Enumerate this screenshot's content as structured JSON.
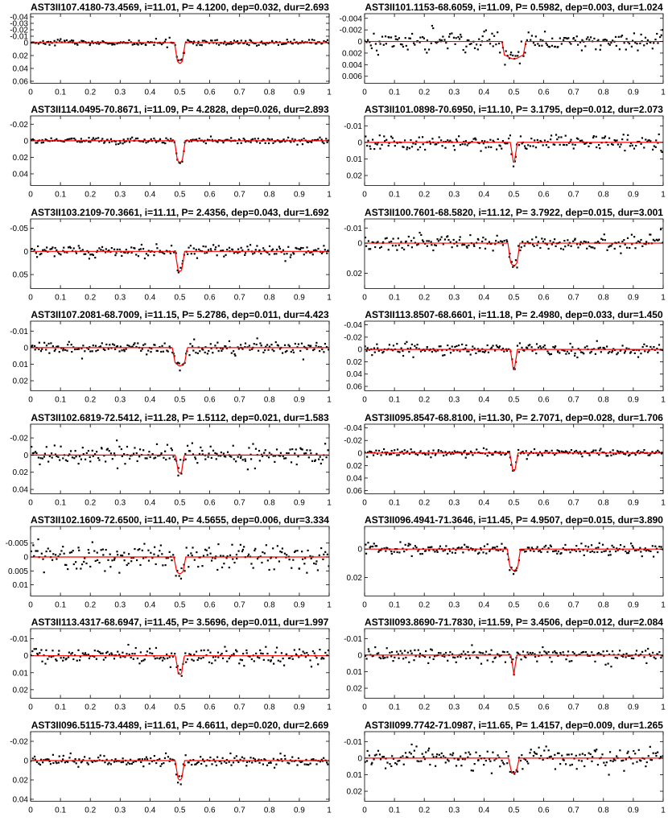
{
  "figure": {
    "colors": {
      "model": "#ff0000",
      "points": "#000000",
      "axes": "#000000"
    }
  },
  "chart_data": [
    {
      "type": "scatter",
      "title": "AST3II107.4180-73.4569, i=11.01, P= 4.1200, dep=0.032, dur=2.693",
      "dep": 0.032,
      "halfwidth": 0.018,
      "noise": 0.0022,
      "ylim": [
        -0.045,
        0.063
      ],
      "yticks": [
        -0.04,
        -0.03,
        -0.02,
        -0.01,
        0,
        0.02,
        0.04,
        0.06
      ],
      "yticklabels": [
        "-0.04",
        "-0.03",
        "-0.02",
        "-0.01",
        "0",
        "0.02",
        "0.04",
        "0.06"
      ],
      "xticks": [
        0,
        0.1,
        0.2,
        0.3,
        0.4,
        0.5,
        0.6,
        0.7,
        0.8,
        0.9,
        1
      ],
      "xticklabels": [
        "0",
        "0.1",
        "0.2",
        "0.3",
        "0.4",
        "0.5",
        "0.6",
        "0.7",
        "0.8",
        "0.9",
        "1"
      ]
    },
    {
      "type": "scatter",
      "title": "AST3II101.1153-68.6059, i=11.09, P= 0.5982, dep=0.003, dur=1.024",
      "dep": 0.003,
      "halfwidth": 0.04,
      "noise": 0.0009,
      "ylim": [
        -0.0048,
        0.0072
      ],
      "yticks": [
        -0.004,
        -0.002,
        0,
        0.002,
        0.004,
        0.006
      ],
      "yticklabels": [
        "-0.004",
        "-0.002",
        "0",
        "0.002",
        "0.004",
        "0.006"
      ],
      "xticks": [
        0,
        0.1,
        0.2,
        0.3,
        0.4,
        0.5,
        0.6,
        0.7,
        0.8,
        0.9,
        1
      ],
      "xticklabels": [
        "0",
        "0.1",
        "0.2",
        "0.3",
        "0.4",
        "0.5",
        "0.6",
        "0.7",
        "0.8",
        "0.9",
        "1"
      ]
    },
    {
      "type": "scatter",
      "title": "AST3II114.0495-70.8671, i=11.09, P= 4.2828, dep=0.026, dur=2.893",
      "dep": 0.026,
      "halfwidth": 0.018,
      "noise": 0.0018,
      "ylim": [
        -0.03,
        0.054
      ],
      "yticks": [
        -0.02,
        0,
        0.02,
        0.04
      ],
      "yticklabels": [
        "-0.02",
        "0",
        "0.02",
        "0.04"
      ],
      "xticks": [
        0,
        0.1,
        0.2,
        0.3,
        0.4,
        0.5,
        0.6,
        0.7,
        0.8,
        0.9,
        1
      ],
      "xticklabels": [
        "0",
        "0.1",
        "0.2",
        "0.3",
        "0.4",
        "0.5",
        "0.6",
        "0.7",
        "0.8",
        "0.9",
        "1"
      ]
    },
    {
      "type": "scatter",
      "title": "AST3II101.0898-70.6950, i=11.10, P= 3.1795, dep=0.012, dur=2.073",
      "dep": 0.012,
      "halfwidth": 0.012,
      "noise": 0.0022,
      "ylim": [
        -0.016,
        0.026
      ],
      "yticks": [
        -0.01,
        0,
        0.01,
        0.02
      ],
      "yticklabels": [
        "-0.01",
        "0",
        "0.01",
        "0.02"
      ],
      "xticks": [
        0,
        0.1,
        0.2,
        0.3,
        0.4,
        0.5,
        0.6,
        0.7,
        0.8,
        0.9,
        1
      ],
      "xticklabels": [
        "0",
        "0.1",
        "0.2",
        "0.3",
        "0.4",
        "0.5",
        "0.6",
        "0.7",
        "0.8",
        "0.9",
        "1"
      ]
    },
    {
      "type": "scatter",
      "title": "AST3II103.2109-70.3661, i=11.11, P= 2.4356, dep=0.043, dur=1.692",
      "dep": 0.043,
      "halfwidth": 0.016,
      "noise": 0.0065,
      "ylim": [
        -0.07,
        0.08
      ],
      "yticks": [
        -0.05,
        0,
        0.05
      ],
      "yticklabels": [
        "-0.05",
        "0",
        "0.05"
      ],
      "xticks": [
        0,
        0.1,
        0.2,
        0.3,
        0.4,
        0.5,
        0.6,
        0.7,
        0.8,
        0.9,
        1
      ],
      "xticklabels": [
        "0",
        "0.1",
        "0.2",
        "0.3",
        "0.4",
        "0.5",
        "0.6",
        "0.7",
        "0.8",
        "0.9",
        "1"
      ]
    },
    {
      "type": "scatter",
      "title": "AST3II100.7601-68.5820, i=11.12, P= 3.7922, dep=0.015, dur=3.001",
      "dep": 0.015,
      "halfwidth": 0.02,
      "noise": 0.0025,
      "ylim": [
        -0.016,
        0.03
      ],
      "yticks": [
        -0.01,
        0,
        0.02
      ],
      "yticklabels": [
        "-0.01",
        "0",
        "0.02"
      ],
      "xticks": [
        0,
        0.1,
        0.2,
        0.3,
        0.4,
        0.5,
        0.6,
        0.7,
        0.8,
        0.9,
        1
      ],
      "xticklabels": [
        "0",
        "0.1",
        "0.2",
        "0.3",
        "0.4",
        "0.5",
        "0.6",
        "0.7",
        "0.8",
        "0.9",
        "1"
      ]
    },
    {
      "type": "scatter",
      "title": "AST3II107.2081-68.7009, i=11.15, P= 5.2786, dep=0.011, dur=4.423",
      "dep": 0.011,
      "halfwidth": 0.025,
      "noise": 0.0018,
      "ylim": [
        -0.016,
        0.026
      ],
      "yticks": [
        -0.01,
        0,
        0.01,
        0.02
      ],
      "yticklabels": [
        "-0.01",
        "0",
        "0.01",
        "0.02"
      ],
      "xticks": [
        0,
        0.1,
        0.2,
        0.3,
        0.4,
        0.5,
        0.6,
        0.7,
        0.8,
        0.9,
        1
      ],
      "xticklabels": [
        "0",
        "0.1",
        "0.2",
        "0.3",
        "0.4",
        "0.5",
        "0.6",
        "0.7",
        "0.8",
        "0.9",
        "1"
      ]
    },
    {
      "type": "scatter",
      "title": "AST3II113.8507-68.6601, i=11.18, P= 2.4980, dep=0.033, dur=1.450",
      "dep": 0.033,
      "halfwidth": 0.012,
      "noise": 0.0045,
      "ylim": [
        -0.046,
        0.067
      ],
      "yticks": [
        -0.04,
        -0.02,
        0,
        0.02,
        0.04,
        0.06
      ],
      "yticklabels": [
        "-0.04",
        "-0.02",
        "0",
        "0.02",
        "0.04",
        "0.06"
      ],
      "xticks": [
        0,
        0.1,
        0.2,
        0.3,
        0.4,
        0.5,
        0.6,
        0.7,
        0.8,
        0.9,
        1
      ],
      "xticklabels": [
        "0",
        "0.1",
        "0.2",
        "0.3",
        "0.4",
        "0.5",
        "0.6",
        "0.7",
        "0.8",
        "0.9",
        "1"
      ]
    },
    {
      "type": "scatter",
      "title": "AST3II102.6819-72.5412, i=11.28, P= 1.5112, dep=0.021, dur=1.583",
      "dep": 0.021,
      "halfwidth": 0.015,
      "noise": 0.0055,
      "ylim": [
        -0.036,
        0.045
      ],
      "yticks": [
        -0.02,
        0,
        0.02,
        0.04
      ],
      "yticklabels": [
        "-0.02",
        "0",
        "0.02",
        "0.04"
      ],
      "xticks": [
        0,
        0.1,
        0.2,
        0.3,
        0.4,
        0.5,
        0.6,
        0.7,
        0.8,
        0.9,
        1
      ],
      "xticklabels": [
        "0",
        "0.1",
        "0.2",
        "0.3",
        "0.4",
        "0.5",
        "0.6",
        "0.7",
        "0.8",
        "0.9",
        "1"
      ]
    },
    {
      "type": "scatter",
      "title": "AST3II095.8547-68.8100, i=11.30, P= 2.7071, dep=0.028, dur=1.706",
      "dep": 0.028,
      "halfwidth": 0.014,
      "noise": 0.0028,
      "ylim": [
        -0.046,
        0.065
      ],
      "yticks": [
        -0.04,
        -0.02,
        0,
        0.02,
        0.04,
        0.06
      ],
      "yticklabels": [
        "-0.04",
        "-0.02",
        "0",
        "0.02",
        "0.04",
        "0.06"
      ],
      "xticks": [
        0,
        0.1,
        0.2,
        0.3,
        0.4,
        0.5,
        0.6,
        0.7,
        0.8,
        0.9,
        1
      ],
      "xticklabels": [
        "0",
        "0.1",
        "0.2",
        "0.3",
        "0.4",
        "0.5",
        "0.6",
        "0.7",
        "0.8",
        "0.9",
        "1"
      ]
    },
    {
      "type": "scatter",
      "title": "AST3II102.1609-72.6500, i=11.40, P= 4.5655, dep=0.006, dur=3.334",
      "dep": 0.006,
      "halfwidth": 0.02,
      "noise": 0.0025,
      "ylim": [
        -0.011,
        0.014
      ],
      "yticks": [
        -0.005,
        0,
        0.005,
        0.01
      ],
      "yticklabels": [
        "-0.005",
        "0",
        "0.005",
        "0.01"
      ],
      "xticks": [
        0,
        0.1,
        0.2,
        0.3,
        0.4,
        0.5,
        0.6,
        0.7,
        0.8,
        0.9,
        1
      ],
      "xticklabels": [
        "0",
        "0.1",
        "0.2",
        "0.3",
        "0.4",
        "0.5",
        "0.6",
        "0.7",
        "0.8",
        "0.9",
        "1"
      ]
    },
    {
      "type": "scatter",
      "title": "AST3II096.4941-71.3646, i=11.45, P= 4.9507, dep=0.015, dur=3.890",
      "dep": 0.015,
      "halfwidth": 0.022,
      "noise": 0.0022,
      "ylim": [
        -0.016,
        0.033
      ],
      "yticks": [
        0,
        0.02
      ],
      "yticklabels": [
        "0",
        "0.02"
      ],
      "xticks": [
        0,
        0.1,
        0.2,
        0.3,
        0.4,
        0.5,
        0.6,
        0.7,
        0.8,
        0.9,
        1
      ],
      "xticklabels": [
        "0",
        "0.1",
        "0.2",
        "0.3",
        "0.4",
        "0.5",
        "0.6",
        "0.7",
        "0.8",
        "0.9",
        "1"
      ]
    },
    {
      "type": "scatter",
      "title": "AST3II113.4317-68.6947, i=11.45, P= 3.5696, dep=0.011, dur=1.997",
      "dep": 0.011,
      "halfwidth": 0.015,
      "noise": 0.0022,
      "ylim": [
        -0.016,
        0.025
      ],
      "yticks": [
        -0.01,
        0,
        0.01,
        0.02
      ],
      "yticklabels": [
        "-0.01",
        "0",
        "0.01",
        "0.02"
      ],
      "xticks": [
        0,
        0.1,
        0.2,
        0.3,
        0.4,
        0.5,
        0.6,
        0.7,
        0.8,
        0.9,
        1
      ],
      "xticklabels": [
        "0",
        "0.1",
        "0.2",
        "0.3",
        "0.4",
        "0.5",
        "0.6",
        "0.7",
        "0.8",
        "0.9",
        "1"
      ]
    },
    {
      "type": "scatter",
      "title": "AST3II093.8690-71.7830, i=11.59, P= 3.4506, dep=0.012, dur=2.084",
      "dep": 0.012,
      "halfwidth": 0.01,
      "noise": 0.0022,
      "ylim": [
        -0.016,
        0.026
      ],
      "yticks": [
        -0.01,
        0,
        0.01,
        0.02
      ],
      "yticklabels": [
        "-0.01",
        "0",
        "0.01",
        "0.02"
      ],
      "xticks": [
        0,
        0.1,
        0.2,
        0.3,
        0.4,
        0.5,
        0.6,
        0.7,
        0.8,
        0.9,
        1
      ],
      "xticklabels": [
        "0",
        "0.1",
        "0.2",
        "0.3",
        "0.4",
        "0.5",
        "0.6",
        "0.7",
        "0.8",
        "0.9",
        "1"
      ]
    },
    {
      "type": "scatter",
      "title": "AST3II096.5115-73.4489, i=11.61, P= 4.6611, dep=0.020, dur=2.669",
      "dep": 0.02,
      "halfwidth": 0.016,
      "noise": 0.0028,
      "ylim": [
        -0.03,
        0.042
      ],
      "yticks": [
        -0.02,
        0,
        0.02,
        0.04
      ],
      "yticklabels": [
        "-0.02",
        "0",
        "0.02",
        "0.04"
      ],
      "xticks": [
        0,
        0.1,
        0.2,
        0.3,
        0.4,
        0.5,
        0.6,
        0.7,
        0.8,
        0.9,
        1
      ],
      "xticklabels": [
        "0",
        "0.1",
        "0.2",
        "0.3",
        "0.4",
        "0.5",
        "0.6",
        "0.7",
        "0.8",
        "0.9",
        "1"
      ]
    },
    {
      "type": "scatter",
      "title": "AST3II099.7742-71.0987, i=11.65, P= 1.4157, dep=0.009, dur=1.265",
      "dep": 0.009,
      "halfwidth": 0.018,
      "noise": 0.0032,
      "ylim": [
        -0.016,
        0.026
      ],
      "yticks": [
        -0.01,
        0,
        0.01,
        0.02
      ],
      "yticklabels": [
        "-0.01",
        "0",
        "0.01",
        "0.02"
      ],
      "xticks": [
        0,
        0.1,
        0.2,
        0.3,
        0.4,
        0.5,
        0.6,
        0.7,
        0.8,
        0.9,
        1
      ],
      "xticklabels": [
        "0",
        "0.1",
        "0.2",
        "0.3",
        "0.4",
        "0.5",
        "0.6",
        "0.7",
        "0.8",
        "0.9",
        "1"
      ]
    }
  ]
}
